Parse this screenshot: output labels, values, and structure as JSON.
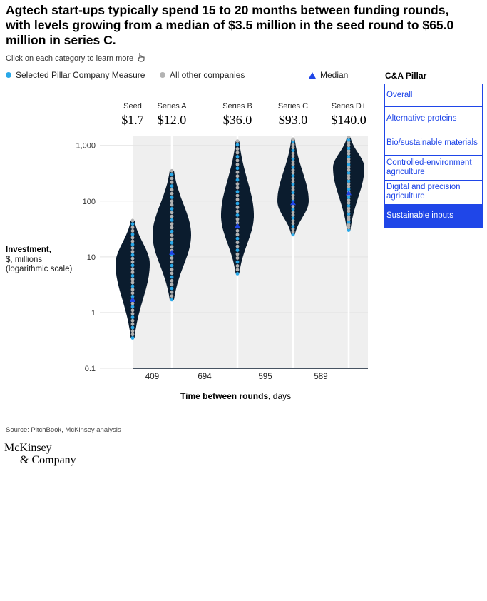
{
  "header": {
    "title": "Agtech start-ups typically spend 15 to 20 months between funding rounds, with levels growing from a median of $3.5 million in the seed round to $65.0 million in series C.",
    "hint": "Click on each category to learn more"
  },
  "legend": {
    "selected": "Selected Pillar Company Measure",
    "others": "All other companies",
    "median": "Median",
    "colors": {
      "selected": "#29a8e8",
      "others": "#b3b3b3",
      "median": "#1f46e8"
    }
  },
  "pillar_panel": {
    "title": "C&A Pillar",
    "items": [
      {
        "label": "Overall",
        "active": false
      },
      {
        "label": "Alternative proteins",
        "active": false
      },
      {
        "label": "Bio/sustainable materials",
        "active": false
      },
      {
        "label": "Controlled-environment agriculture",
        "active": false
      },
      {
        "label": "Digital and precision agriculture",
        "active": false
      },
      {
        "label": "Sustainable inputs",
        "active": true
      }
    ]
  },
  "axis": {
    "y_title": "Investment,",
    "y_sub1": "$, millions",
    "y_sub2": "(logarithmic scale)",
    "x_title_bold": "Time between rounds,",
    "x_title_unit": " days"
  },
  "footer": {
    "source": "Source: PitchBook, McKinsey analysis",
    "logo_line1": "McKinsey",
    "logo_line2": "& Company"
  },
  "chart_data": {
    "type": "violin",
    "scale": "log",
    "ylim": [
      0.1,
      1500
    ],
    "yticks": [
      {
        "v": 0.1,
        "label": "0.1"
      },
      {
        "v": 1,
        "label": "1"
      },
      {
        "v": 10,
        "label": "10"
      },
      {
        "v": 100,
        "label": "100"
      },
      {
        "v": 1000,
        "label": "1,000"
      }
    ],
    "colors": {
      "violin": "#0b1c2e",
      "band": "#efefef",
      "divider": "#ffffff"
    },
    "series": [
      {
        "name": "Seed",
        "median_label": "$1.7",
        "median": 1.7,
        "min": 0.35,
        "max": 45,
        "peak": 7.5
      },
      {
        "name": "Series A",
        "median_label": "$12.0",
        "median": 12.0,
        "min": 1.7,
        "max": 350,
        "peak": 25
      },
      {
        "name": "Series B",
        "median_label": "$36.0",
        "median": 36.0,
        "min": 5,
        "max": 1200,
        "peak": 55
      },
      {
        "name": "Series C",
        "median_label": "$93.0",
        "median": 93.0,
        "min": 25,
        "max": 1300,
        "peak": 100
      },
      {
        "name": "Series D+",
        "median_label": "$140.0",
        "median": 140.0,
        "min": 30,
        "max": 1400,
        "peak": 400
      }
    ],
    "gaps": [
      {
        "days": "409"
      },
      {
        "days": "694"
      },
      {
        "days": "595"
      },
      {
        "days": "589"
      }
    ]
  }
}
